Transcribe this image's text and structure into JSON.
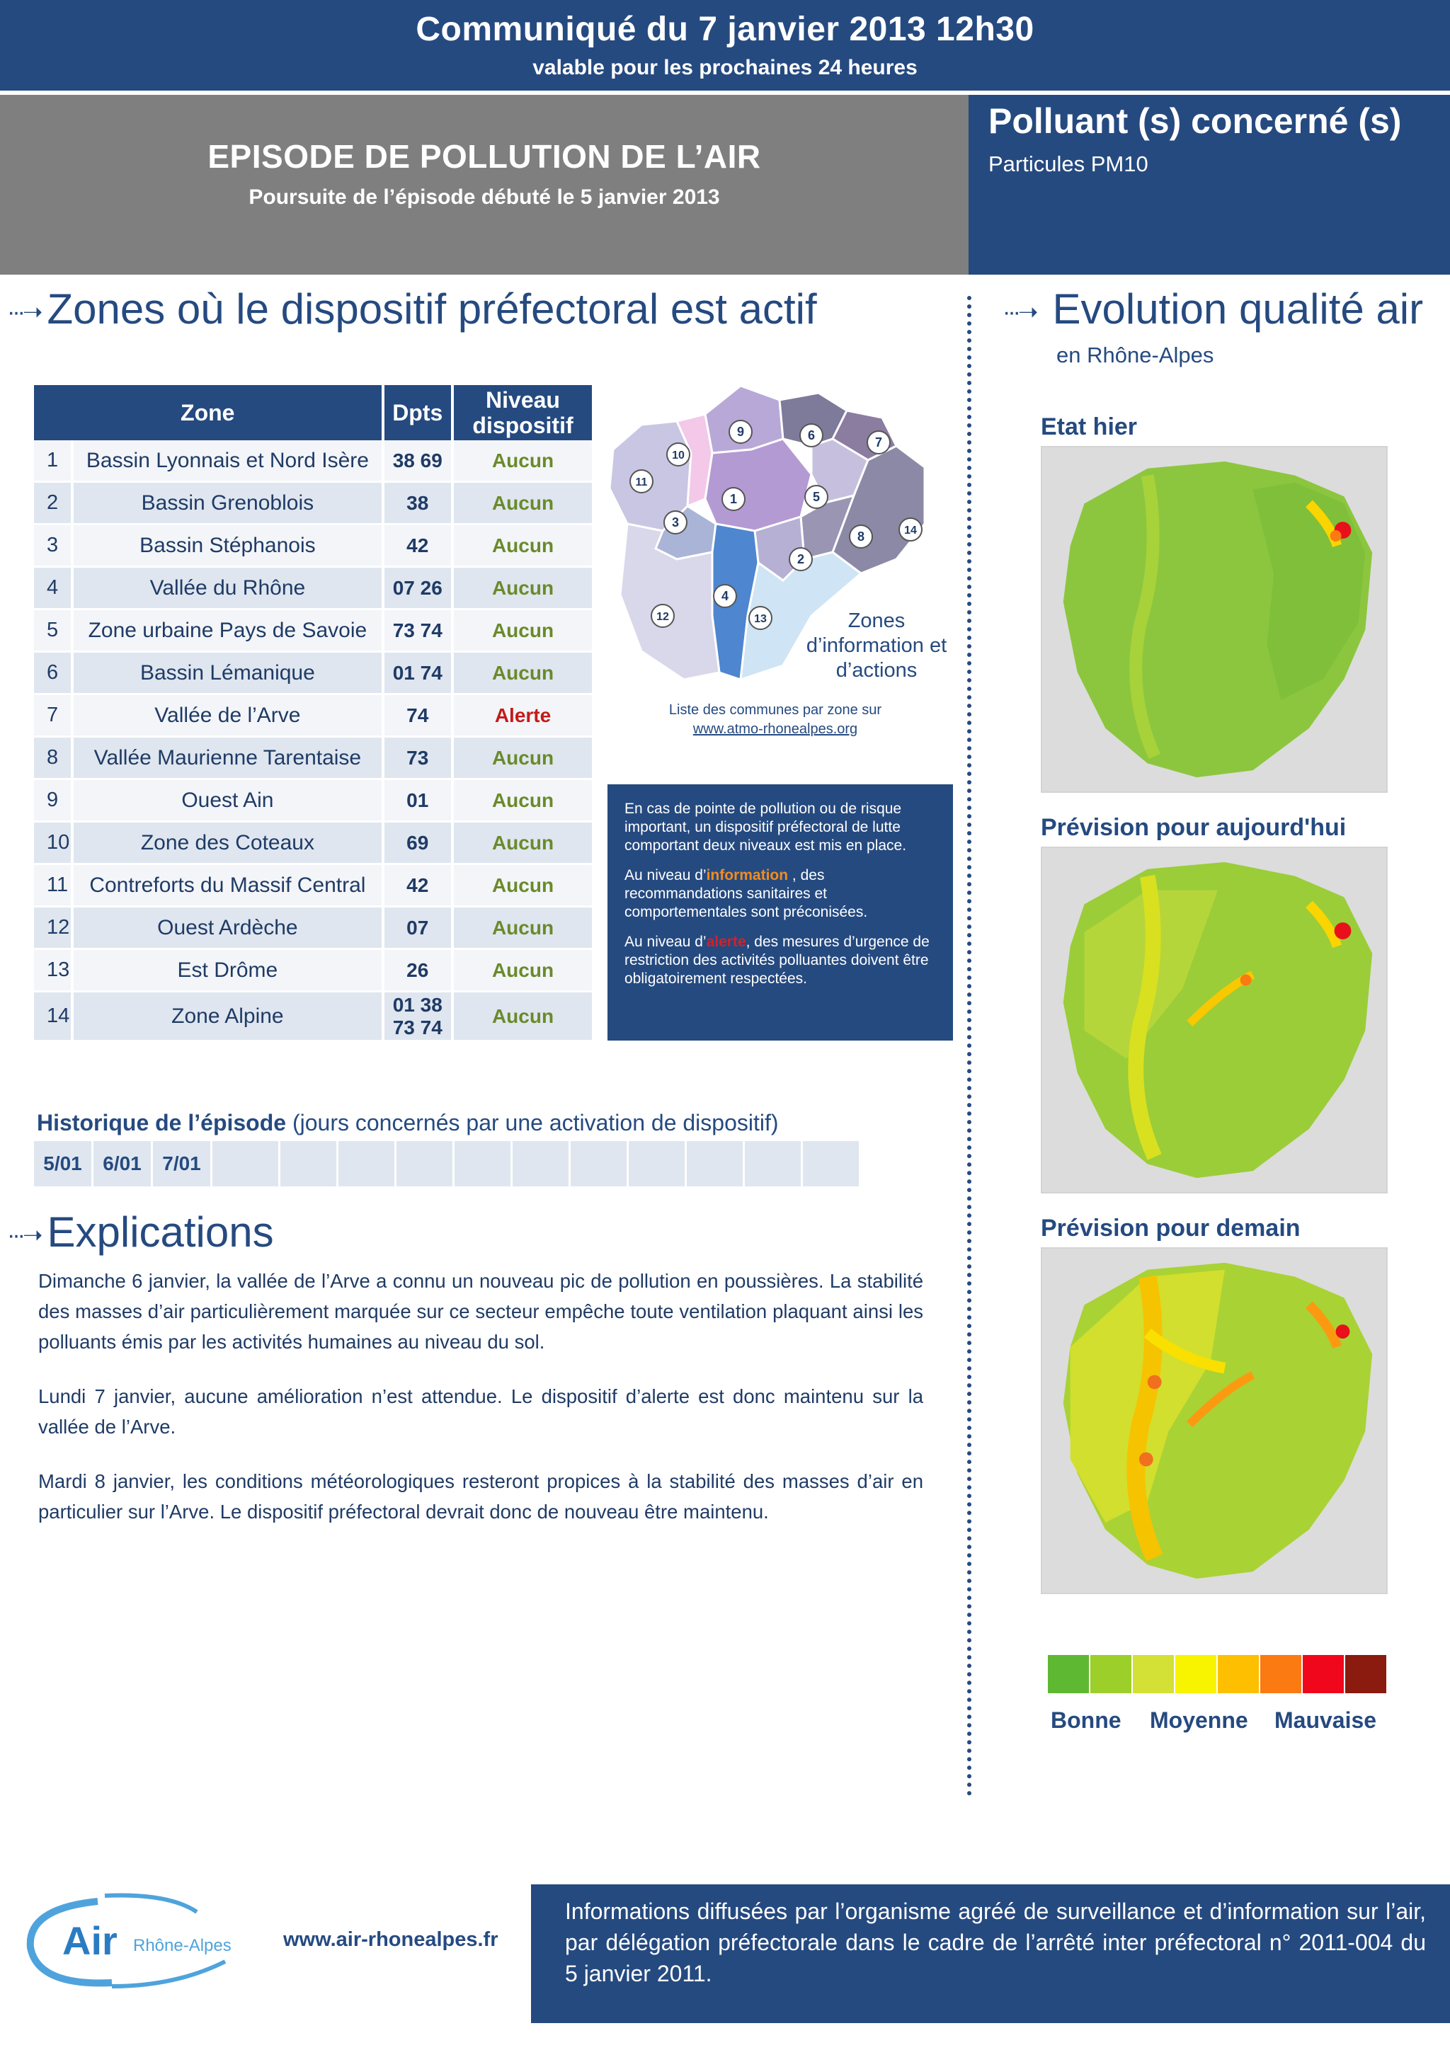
{
  "header": {
    "title": "Communiqué du 7 janvier 2013 12h30",
    "subtitle": "valable pour les prochaines 24 heures"
  },
  "episode": {
    "title": "EPISODE DE POLLUTION DE L’AIR",
    "subtitle": "Poursuite de l’épisode débuté le 5 janvier 2013"
  },
  "pollutant": {
    "title": "Polluant (s) concerné (s)",
    "value": "Particules PM10"
  },
  "zones_section": {
    "title": "Zones où le dispositif préfectoral est actif",
    "table_headers": [
      "Zone",
      "Dpts",
      "Niveau dispositif"
    ],
    "rows": [
      {
        "num": "1",
        "zone": "Bassin Lyonnais et Nord Isère",
        "dpts": "38 69",
        "level": "Aucun"
      },
      {
        "num": "2",
        "zone": "Bassin Grenoblois",
        "dpts": "38",
        "level": "Aucun"
      },
      {
        "num": "3",
        "zone": "Bassin Stéphanois",
        "dpts": "42",
        "level": "Aucun"
      },
      {
        "num": "4",
        "zone": "Vallée du Rhône",
        "dpts": "07 26",
        "level": "Aucun"
      },
      {
        "num": "5",
        "zone": "Zone urbaine Pays de Savoie",
        "dpts": "73 74",
        "level": "Aucun"
      },
      {
        "num": "6",
        "zone": "Bassin Lémanique",
        "dpts": "01 74",
        "level": "Aucun"
      },
      {
        "num": "7",
        "zone": "Vallée de l’Arve",
        "dpts": "74",
        "level": "Alerte"
      },
      {
        "num": "8",
        "zone": "Vallée Maurienne Tarentaise",
        "dpts": "73",
        "level": "Aucun"
      },
      {
        "num": "9",
        "zone": "Ouest Ain",
        "dpts": "01",
        "level": "Aucun"
      },
      {
        "num": "10",
        "zone": "Zone des Coteaux",
        "dpts": "69",
        "level": "Aucun"
      },
      {
        "num": "11",
        "zone": "Contreforts du Massif Central",
        "dpts": "42",
        "level": "Aucun"
      },
      {
        "num": "12",
        "zone": "Ouest Ardèche",
        "dpts": "07",
        "level": "Aucun"
      },
      {
        "num": "13",
        "zone": "Est Drôme",
        "dpts": "26",
        "level": "Aucun"
      },
      {
        "num": "14",
        "zone": "Zone Alpine",
        "dpts": "01 38",
        "dpts2": "73 74",
        "level": "Aucun"
      }
    ],
    "map_zone_numbers": [
      "1",
      "2",
      "3",
      "4",
      "5",
      "6",
      "7",
      "8",
      "9",
      "10",
      "11",
      "12",
      "13",
      "14"
    ],
    "map_zones_label": "Zones d’information et d’actions",
    "map_caption": "Liste des communes par zone sur",
    "map_link": "www.atmo-rhonealpes.org"
  },
  "info_box": {
    "p1": "En cas de pointe de pollution ou de risque important, un dispositif préfectoral de lutte comportant deux  niveaux est mis en place.",
    "p2_pre": "Au niveau d’",
    "p2_hl": "information",
    "p2_post": " , des recommandations sanitaires et comportementales sont préconisées.",
    "p3_pre": "Au niveau d’",
    "p3_hl": "alerte",
    "p3_post": ", des mesures d’urgence de restriction des activités polluantes doivent être obligatoirement respectées."
  },
  "historique": {
    "title_bold": "Historique de  l’épisode",
    "title_rest": " (jours concernés par une activation de dispositif)",
    "days": [
      "5/01",
      "6/01",
      "7/01",
      "",
      "",
      "",
      "",
      "",
      "",
      "",
      "",
      "",
      "",
      ""
    ]
  },
  "explications": {
    "title": "Explications",
    "paragraphs": [
      "Dimanche 6 janvier, la vallée de l’Arve a connu un nouveau pic de pollution en poussières. La stabilité des masses d’air particulièrement marquée sur ce secteur empêche toute ventilation plaquant ainsi les polluants émis par les activités humaines au niveau du sol.",
      "Lundi 7 janvier, aucune amélioration n’est attendue. Le dispositif d’alerte est donc maintenu sur la vallée de l’Arve.",
      "Mardi 8 janvier, les conditions météorologiques resteront propices à la stabilité des masses d’air en particulier sur l’Arve. Le dispositif préfectoral devrait donc de nouveau être maintenu."
    ]
  },
  "evolution": {
    "title": "Evolution  qualité air",
    "subtitle": "en Rhône-Alpes",
    "maps": [
      {
        "label": "Etat hier"
      },
      {
        "label": "Prévision pour aujourd'hui"
      },
      {
        "label": "Prévision pour demain"
      }
    ],
    "legend_colors": [
      "#5fb832",
      "#9ccf2a",
      "#d3e036",
      "#f8f400",
      "#fdbf00",
      "#fb7a12",
      "#f0071b",
      "#8b1a0f"
    ],
    "legend_labels": [
      "Bonne",
      "Moyenne",
      "Mauvaise"
    ]
  },
  "footer": {
    "logo_text": "Air",
    "logo_sub": "Rhône-Alpes",
    "url": "www.air-rhonealpes.fr",
    "text": "Informations diffusées par l’organisme agréé de surveillance et d’information sur l’air, par délégation préfectorale dans le cadre de l’arrêté inter préfectoral n° 2011-004 du 5 janvier 2011."
  }
}
